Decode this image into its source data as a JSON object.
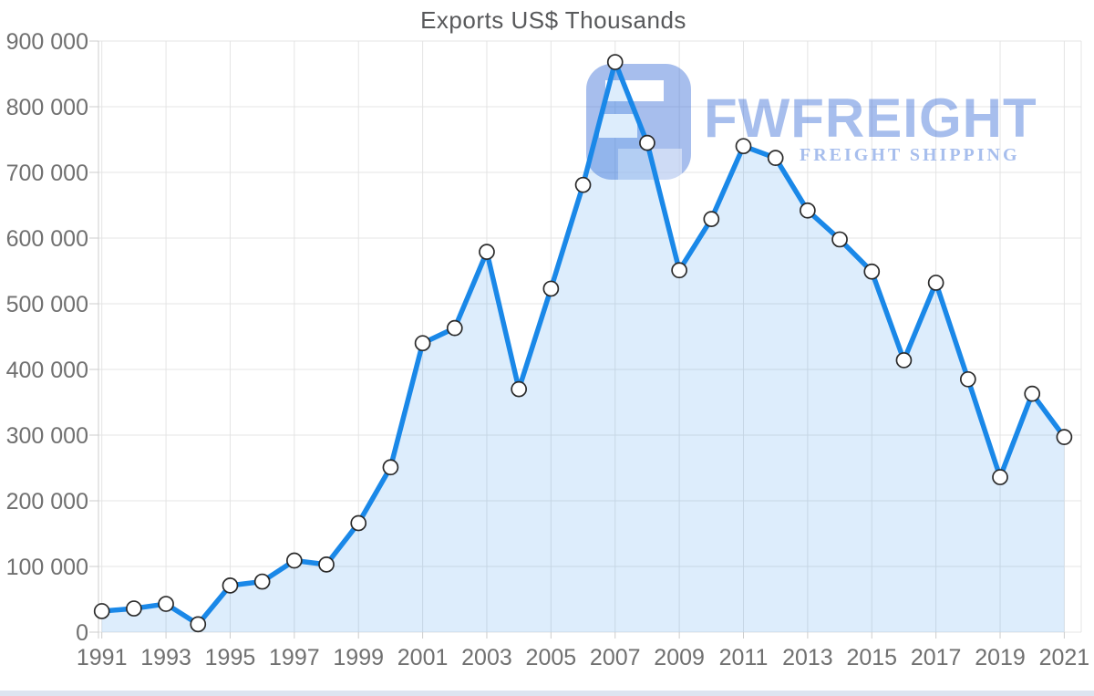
{
  "page": {
    "title": "Exports US$ Thousands"
  },
  "watermark": {
    "brand": "FWFREIGHT",
    "tagline": "FREIGHT SHIPPING"
  },
  "colors": {
    "line": "#1a88e8",
    "area_fill": "rgba(26,136,232,0.15)",
    "grid": "#e4e4e4",
    "axis": "#cccccc",
    "tick_label": "#707070",
    "title": "#58595b",
    "marker_fill": "#ffffff",
    "marker_stroke": "#2a2a2a",
    "watermark_blue": "rgba(60,110,215,0.45)"
  },
  "chart_data": {
    "type": "area",
    "title": "Exports US$ Thousands",
    "xlabel": "",
    "ylabel": "",
    "x": [
      1991,
      1992,
      1993,
      1994,
      1995,
      1996,
      1997,
      1998,
      1999,
      2000,
      2001,
      2002,
      2003,
      2004,
      2005,
      2006,
      2007,
      2008,
      2009,
      2010,
      2011,
      2012,
      2013,
      2014,
      2015,
      2016,
      2017,
      2018,
      2019,
      2020,
      2021
    ],
    "values": [
      32000,
      36000,
      43000,
      12000,
      71000,
      77000,
      109000,
      103000,
      166000,
      251000,
      440000,
      463000,
      579000,
      370000,
      523000,
      681000,
      868000,
      745000,
      551000,
      629000,
      740000,
      722000,
      642000,
      598000,
      549000,
      414000,
      532000,
      385000,
      236000,
      363000,
      297000
    ],
    "ylim": [
      0,
      900000
    ],
    "y_tick_interval": 100000,
    "y_tick_labels": [
      "0",
      "100 000",
      "200 000",
      "300 000",
      "400 000",
      "500 000",
      "600 000",
      "700 000",
      "800 000",
      "900 000"
    ],
    "x_tick_labels": [
      "1991",
      "1993",
      "1995",
      "1997",
      "1999",
      "2001",
      "2003",
      "2005",
      "2007",
      "2009",
      "2011",
      "2013",
      "2015",
      "2017",
      "2019",
      "2021"
    ],
    "grid": true,
    "markers": true,
    "legend": false
  }
}
